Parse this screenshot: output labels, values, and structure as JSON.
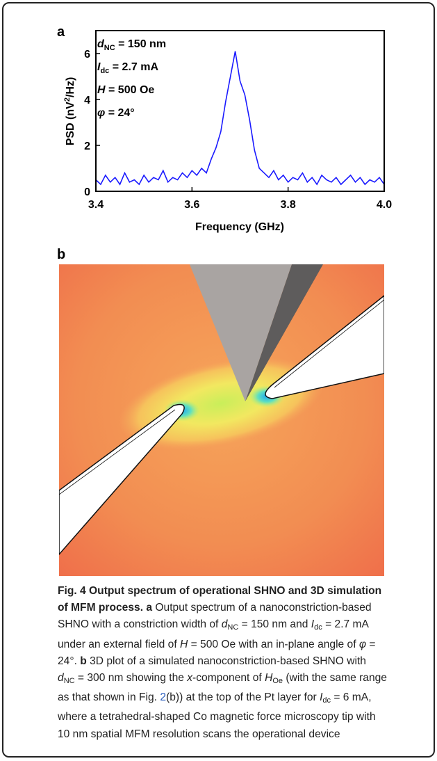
{
  "chart_data": {
    "type": "line",
    "panel_label": "a",
    "xlabel": "Frequency (GHz)",
    "ylabel": [
      "PSD (nV",
      "2",
      "/Hz)"
    ],
    "annotations": [
      [
        "d",
        "NC",
        " = 150 nm"
      ],
      [
        "I",
        "dc",
        " = 2.7 mA"
      ],
      [
        "H",
        " = 500 Oe"
      ],
      [
        "φ",
        " = 24°"
      ]
    ],
    "xlim": [
      3.4,
      4.0
    ],
    "ylim": [
      0,
      7
    ],
    "xticks": [
      3.4,
      3.6,
      3.8,
      {
        "value": 4.0,
        "label": "4.0"
      }
    ],
    "yticks": [
      0,
      2,
      4,
      6
    ],
    "series": [
      {
        "color": "#1a1aff",
        "x": [
          3.4,
          3.41,
          3.42,
          3.43,
          3.44,
          3.45,
          3.46,
          3.47,
          3.48,
          3.49,
          3.5,
          3.51,
          3.52,
          3.53,
          3.54,
          3.55,
          3.56,
          3.57,
          3.58,
          3.59,
          3.6,
          3.61,
          3.62,
          3.63,
          3.64,
          3.65,
          3.66,
          3.67,
          3.68,
          3.69,
          3.7,
          3.71,
          3.72,
          3.73,
          3.74,
          3.75,
          3.76,
          3.77,
          3.78,
          3.79,
          3.8,
          3.81,
          3.82,
          3.83,
          3.84,
          3.85,
          3.86,
          3.87,
          3.88,
          3.89,
          3.9,
          3.91,
          3.92,
          3.93,
          3.94,
          3.95,
          3.96,
          3.97,
          3.98,
          3.99,
          4.0
        ],
        "values": [
          0.5,
          0.3,
          0.7,
          0.4,
          0.6,
          0.3,
          0.8,
          0.4,
          0.5,
          0.3,
          0.7,
          0.4,
          0.6,
          0.5,
          0.9,
          0.4,
          0.6,
          0.5,
          0.8,
          0.6,
          0.9,
          0.7,
          1.0,
          0.8,
          1.4,
          1.9,
          2.6,
          3.9,
          5.0,
          6.1,
          4.8,
          4.2,
          3.1,
          1.8,
          1.0,
          0.8,
          0.6,
          0.9,
          0.5,
          0.7,
          0.4,
          0.6,
          0.5,
          0.8,
          0.4,
          0.6,
          0.3,
          0.7,
          0.5,
          0.4,
          0.6,
          0.3,
          0.5,
          0.7,
          0.4,
          0.6,
          0.3,
          0.5,
          0.4,
          0.6,
          0.3
        ]
      }
    ]
  },
  "panel_b": {
    "label": "b"
  },
  "caption": {
    "lines": [
      [
        "Fig. 4 Output spectrum of operational SHNO and 3D simulation"
      ],
      [
        "of MFM process.",
        "a",
        " Output spectrum of a nanoconstriction-based"
      ],
      [
        "SHNO with a constriction width of ",
        "d",
        "NC",
        " = 150 nm and ",
        "I",
        "dc",
        " = 2.7 mA"
      ],
      [
        "under an external field of ",
        "H",
        " = 500 Oe with an in-plane angle of ",
        "φ",
        " ="
      ],
      [
        "24°. ",
        "b",
        " 3D plot of a simulated nanoconstriction-based SHNO with"
      ],
      [
        "d",
        "NC",
        " = 300 nm showing the ",
        "x",
        "-component of ",
        "H",
        "Oe",
        " (with the same range"
      ],
      [
        "as that shown in Fig. ",
        "2",
        "(b)) at the top of the Pt layer for ",
        "I",
        "dc",
        " = 6 mA,"
      ],
      [
        "where a tetrahedral-shaped Co magnetic force microscopy tip with"
      ],
      [
        "10 nm spatial MFM resolution scans the operational device"
      ]
    ]
  }
}
